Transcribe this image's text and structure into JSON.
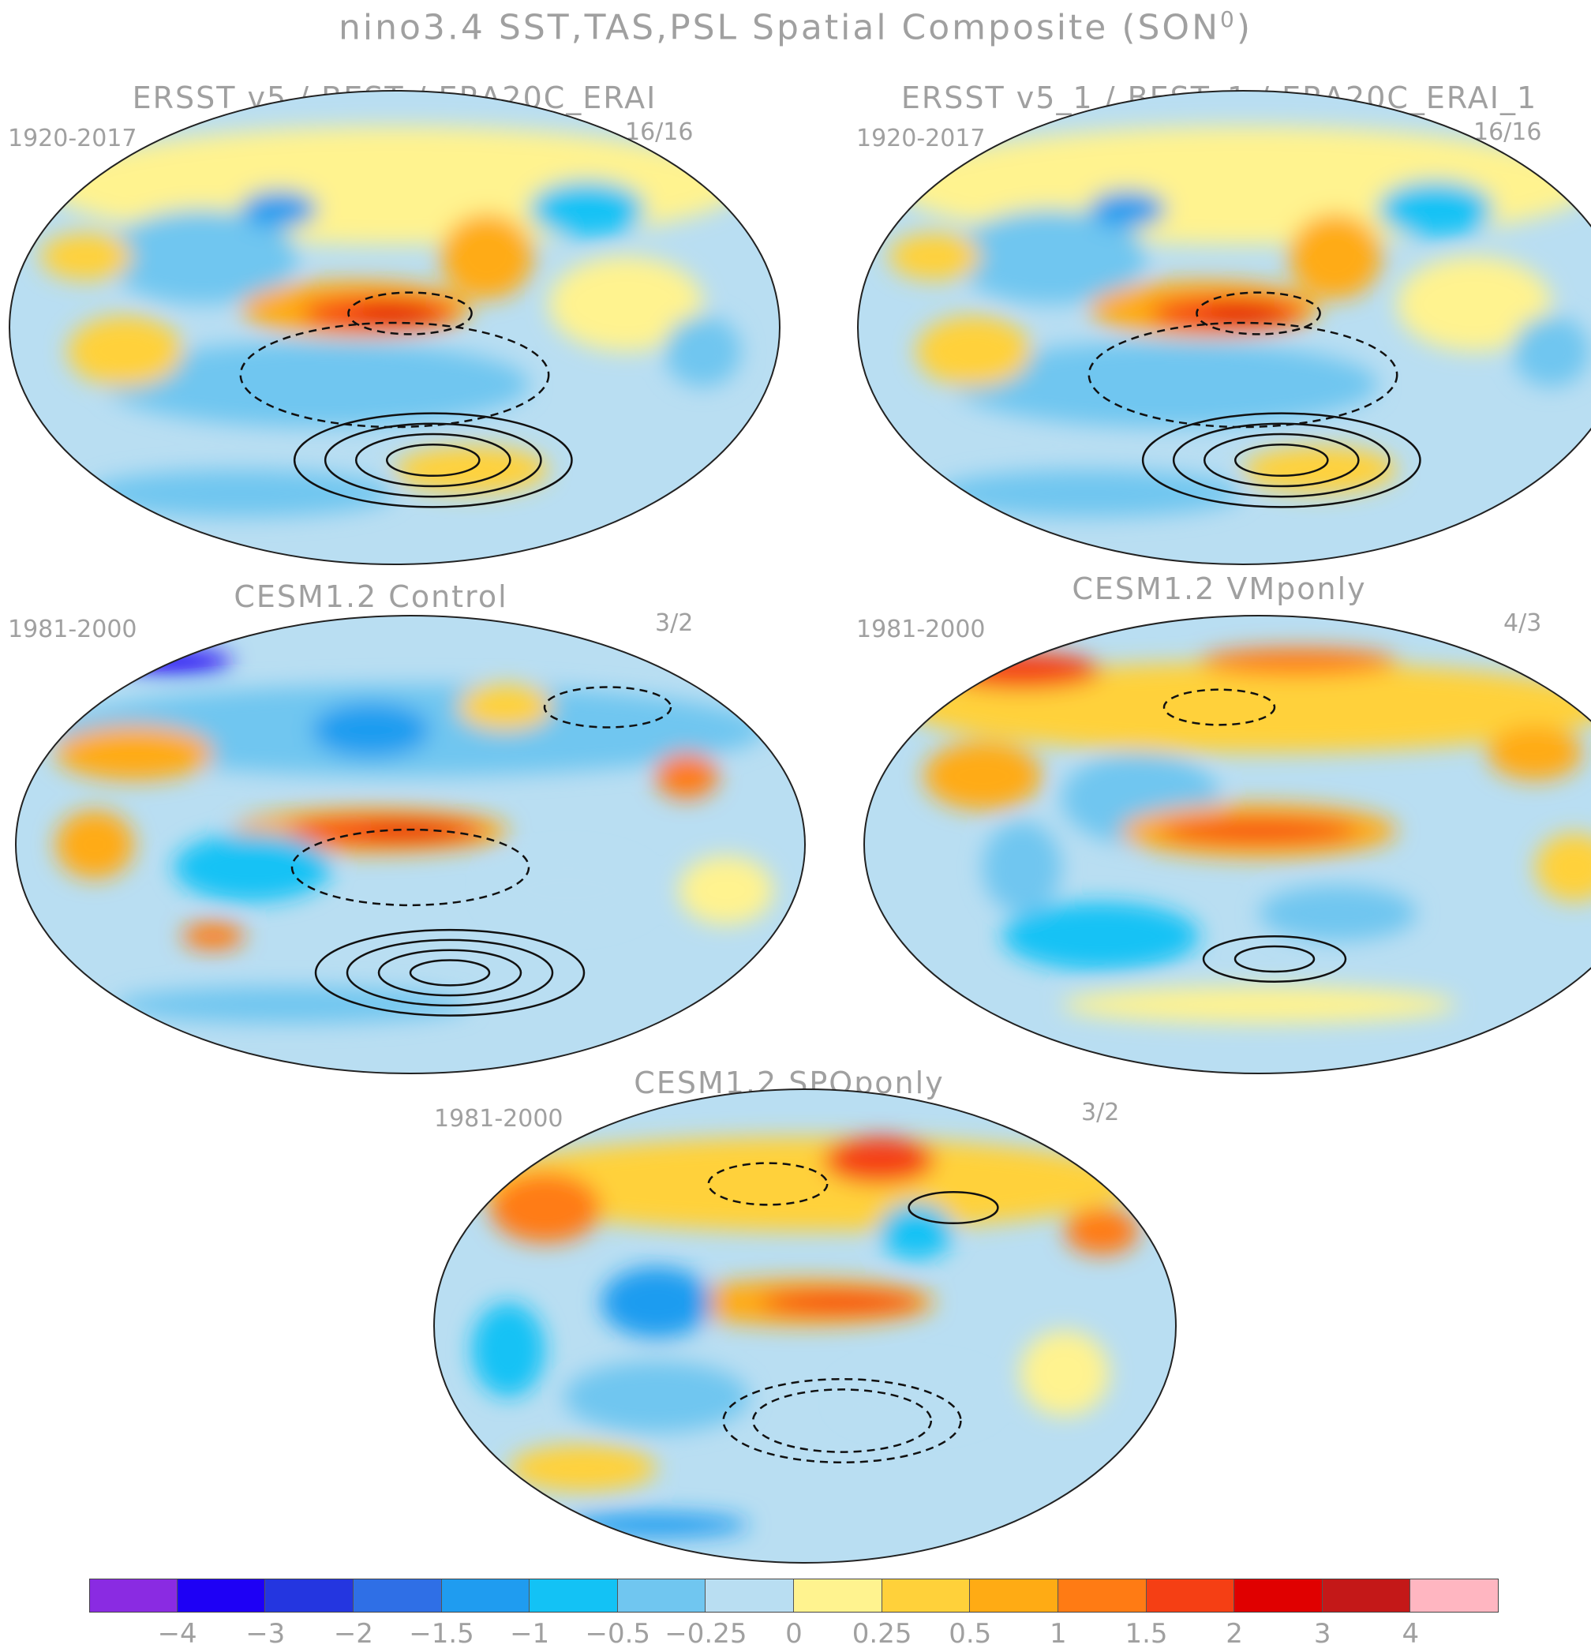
{
  "title": {
    "text": "nino3.4 SST,TAS,PSL Spatial Composite (SON",
    "superscript": "0",
    "suffix": ")"
  },
  "panels": [
    {
      "id": "obs",
      "title": "ERSST v5 / BEST / ERA20C_ERAI",
      "period": "1920-2017",
      "count": "16/16"
    },
    {
      "id": "obs1",
      "title": "ERSST v5_1 / BEST_1 / ERA20C_ERAI_1",
      "period": "1920-2017",
      "count": "16/16"
    },
    {
      "id": "control",
      "title": "CESM1.2 Control",
      "period": "1981-2000",
      "count": "3/2"
    },
    {
      "id": "vmponly",
      "title": "CESM1.2 VMponly",
      "period": "1981-2000",
      "count": "4/3"
    },
    {
      "id": "spqponly",
      "title": "CESM1.2 SPQponly",
      "period": "1981-2000",
      "count": "3/2"
    }
  ],
  "chart_data": {
    "type": "heatmap",
    "projection": "global elliptical (Pacific-centered)",
    "overlay": "PSL contours (solid positive, dashed negative)",
    "colorbar": {
      "levels": [
        -4,
        -3,
        -2,
        -1.5,
        -1,
        -0.5,
        -0.25,
        0,
        0.25,
        0.5,
        1,
        1.5,
        2,
        3,
        4
      ],
      "labels": [
        "-4",
        "-3",
        "-2",
        "-1.5",
        "-1",
        "-0.5",
        "-0.25",
        "0",
        "0.25",
        "0.5",
        "1",
        "1.5",
        "2",
        "3",
        "4"
      ],
      "colors": [
        "#8a2be2",
        "#1e00f5",
        "#2436e0",
        "#2f6fe6",
        "#1f9cf0",
        "#13c2f5",
        "#70c6f0",
        "#b9def2",
        "#fff38f",
        "#ffd13a",
        "#ffab14",
        "#ff7b14",
        "#f53f14",
        "#e00000",
        "#c41818",
        "#ffb6c1"
      ]
    }
  }
}
